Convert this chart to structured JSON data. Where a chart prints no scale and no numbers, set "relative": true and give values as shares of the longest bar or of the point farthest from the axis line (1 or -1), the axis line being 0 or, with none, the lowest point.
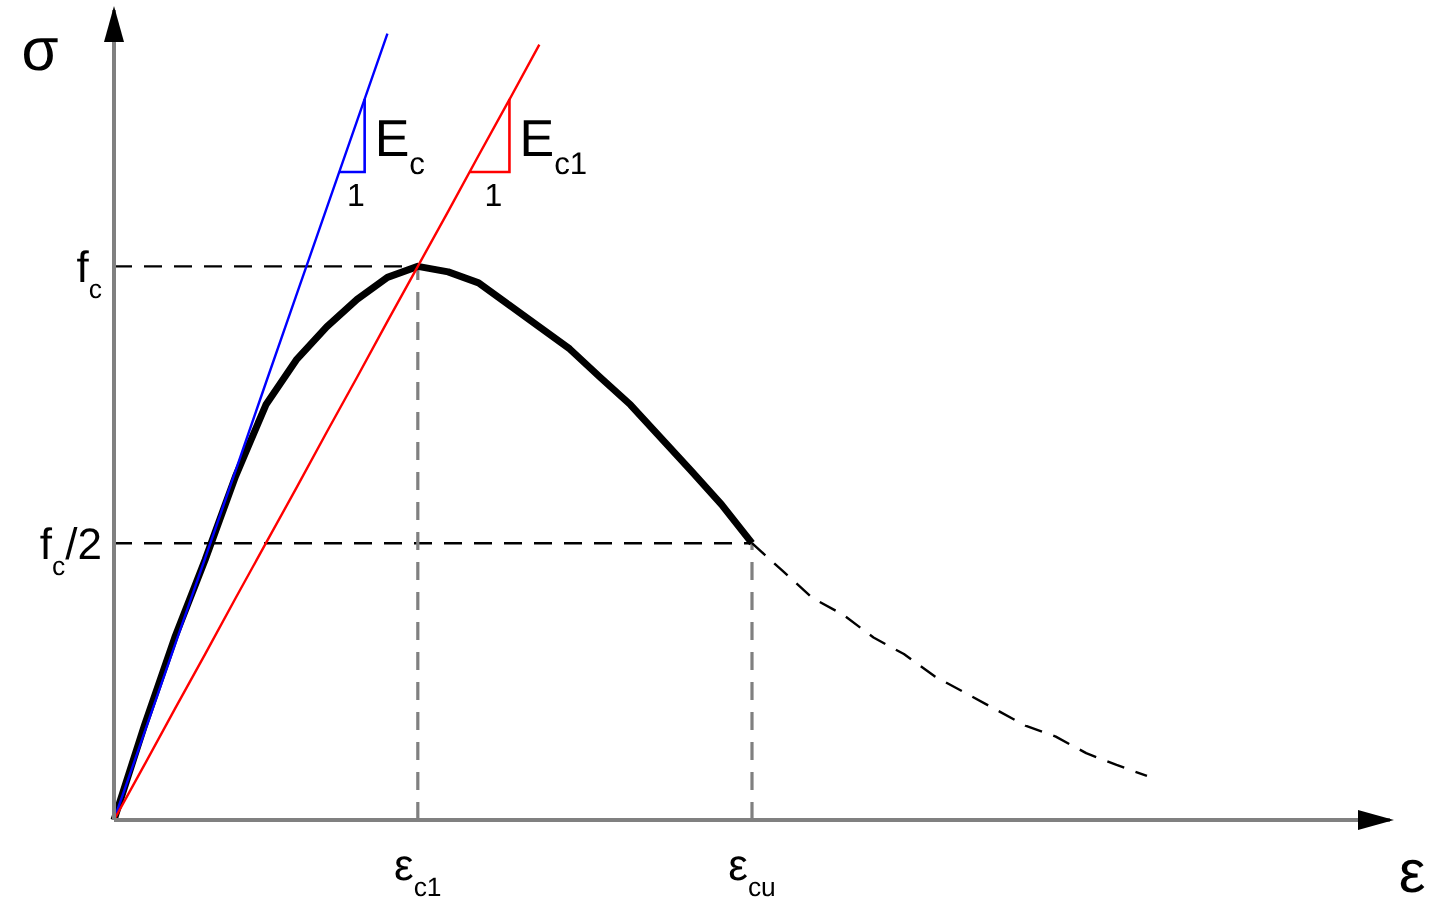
{
  "chart_data": {
    "type": "line",
    "relative": true,
    "xlabel": "ε",
    "ylabel": "σ",
    "marker": "none",
    "legend": "top",
    "categories": [
      null,
      null,
      null,
      null,
      null,
      null,
      null,
      null,
      null,
      null,
      "ε$_{c1}$",
      null,
      null,
      null,
      null,
      null,
      null,
      null,
      null,
      null,
      null,
      "ε$_{cu}$",
      null,
      null,
      null,
      null,
      null,
      null,
      null,
      null,
      null,
      null,
      null,
      null,
      null,
      null,
      null,
      null,
      null,
      null,
      null,
      null,
      null
    ],
    "annotations": [
      "1",
      "1"
    ],
    "ref_lines": [
      {
        "axis": "y",
        "value": 0.704,
        "label": "f$_{c}$",
        "color": "#000000",
        "line_style": "dashed"
      },
      {
        "axis": "y",
        "value": 0.352,
        "label": "f$_{c}$/2",
        "color": "#000000",
        "line_style": "dashed"
      },
      {
        "axis": "x",
        "value": "ε$_{c1}$",
        "color": "#808080",
        "line_style": "dashed"
      },
      {
        "axis": "x",
        "value": "ε$_{cu}$",
        "color": "#808080",
        "line_style": "dashed"
      }
    ],
    "series": [
      {
        "color": "#000000",
        "line_style": "solid",
        "values": [
          0,
          0.12,
          0.232,
          0.331,
          0.437,
          0.528,
          0.585,
          0.627,
          0.662,
          0.69,
          0.704,
          0.697,
          0.683,
          0.655,
          0.627,
          0.599,
          0.563,
          0.528,
          0.486,
          0.444,
          0.401,
          0.352,
          null,
          null,
          null,
          null,
          null,
          null,
          null,
          null,
          null,
          null,
          null,
          null,
          null,
          null,
          null,
          null,
          null,
          null,
          null,
          null,
          null
        ]
      },
      {
        "color": "#000000",
        "line_style": "dashed",
        "values": [
          null,
          null,
          null,
          null,
          null,
          null,
          null,
          null,
          null,
          null,
          null,
          null,
          null,
          null,
          null,
          null,
          null,
          null,
          null,
          null,
          null,
          0.352,
          0.317,
          0.282,
          0.261,
          0.232,
          0.211,
          0.183,
          0.162,
          0.141,
          0.12,
          0.106,
          0.085,
          0.07,
          0.056,
          null,
          null,
          null,
          null,
          null,
          null,
          null,
          null
        ]
      },
      {
        "name": "E$_{c}$",
        "color": "#0000ff",
        "line_style": "solid",
        "values": [
          0,
          0.111,
          0.222,
          0.333,
          0.444,
          0.556,
          0.667,
          0.778,
          0.889,
          1,
          null,
          null,
          null,
          null,
          null,
          null,
          null,
          null,
          null,
          null,
          null,
          null,
          null,
          null,
          null,
          null,
          null,
          null,
          null,
          null,
          null,
          null,
          null,
          null,
          null,
          null,
          null,
          null,
          null,
          null,
          null,
          null,
          null
        ]
      },
      {
        "name": "E$_{c1}$",
        "color": "#ff0000",
        "line_style": "solid",
        "values": [
          0,
          0.07,
          0.141,
          0.211,
          0.282,
          0.352,
          0.422,
          0.493,
          0.563,
          0.634,
          0.704,
          0.774,
          0.845,
          0.915,
          0.986,
          null,
          null,
          null,
          null,
          null,
          null,
          null,
          null,
          null,
          null,
          null,
          null,
          null,
          null,
          null,
          null,
          null,
          null,
          null,
          null,
          null,
          null,
          null,
          null,
          null,
          null,
          null,
          null
        ]
      }
    ]
  }
}
